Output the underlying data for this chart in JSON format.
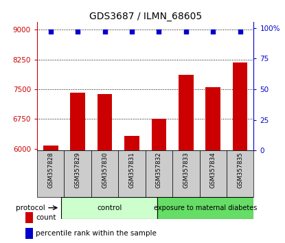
{
  "title": "GDS3687 / ILMN_68605",
  "categories": [
    "GSM357828",
    "GSM357829",
    "GSM357830",
    "GSM357831",
    "GSM357832",
    "GSM357833",
    "GSM357834",
    "GSM357835"
  ],
  "bar_values": [
    6080,
    7420,
    7380,
    6330,
    6750,
    7870,
    7560,
    8180
  ],
  "percentile_values": [
    97,
    97,
    97,
    97,
    97,
    97,
    97,
    97
  ],
  "bar_color": "#cc0000",
  "percentile_color": "#0000cc",
  "ylim_left": [
    5950,
    9200
  ],
  "ylim_right": [
    0,
    105
  ],
  "yticks_left": [
    6000,
    6750,
    7500,
    8250,
    9000
  ],
  "yticks_right": [
    0,
    25,
    50,
    75,
    100
  ],
  "grid_values": [
    6750,
    7500,
    8250,
    9000
  ],
  "control_label": "control",
  "treatment_label": "exposure to maternal diabetes",
  "protocol_label": "protocol",
  "legend_count": "count",
  "legend_percentile": "percentile rank within the sample",
  "control_color": "#ccffcc",
  "treatment_color": "#66dd66",
  "xticklabel_bg": "#cccccc",
  "title_fontsize": 10,
  "axis_label_color_left": "#cc0000",
  "axis_label_color_right": "#0000cc",
  "bg_color": "#ffffff"
}
